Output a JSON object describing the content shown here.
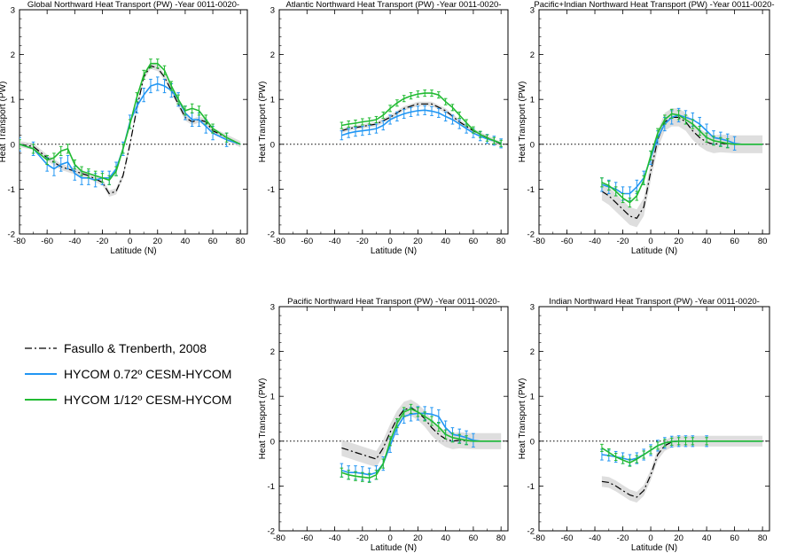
{
  "legend": {
    "items": [
      {
        "label": "Fasullo & Trenberth, 2008",
        "color": "#000000",
        "style": "dashdot"
      },
      {
        "label": "HYCOM 0.72º CESM-HYCOM",
        "color": "#2196f3",
        "style": "solid"
      },
      {
        "label": "HYCOM 1/12º CESM-HYCOM",
        "color": "#22bb33",
        "style": "solid"
      }
    ]
  },
  "chart_data": [
    {
      "type": "line",
      "title": "Global Northward Heat Transport (PW) -Year 0011-0020-",
      "xlabel": "Latitude (N)",
      "ylabel": "Heat Transport (PW)",
      "xlim": [
        -80,
        85
      ],
      "ylim": [
        -2,
        3
      ],
      "xticks": [
        -80,
        -60,
        -40,
        -20,
        0,
        20,
        40,
        60,
        80
      ],
      "yticks": [
        -2,
        -1,
        0,
        1,
        2,
        3
      ],
      "series": [
        {
          "name": "Fasullo & Trenberth, 2008",
          "x": [
            -80,
            -70,
            -60,
            -50,
            -40,
            -30,
            -20,
            -15,
            -10,
            -5,
            0,
            5,
            10,
            15,
            20,
            25,
            30,
            35,
            40,
            45,
            50,
            55,
            60,
            70,
            80
          ],
          "y": [
            0,
            -0.05,
            -0.3,
            -0.5,
            -0.6,
            -0.7,
            -0.85,
            -1.1,
            -1.05,
            -0.7,
            0,
            0.8,
            1.5,
            1.75,
            1.7,
            1.5,
            1.2,
            0.9,
            0.6,
            0.5,
            0.55,
            0.5,
            0.3,
            0.15,
            0
          ],
          "band": 0.07
        },
        {
          "name": "HYCOM 0.72º CESM-HYCOM",
          "x": [
            -80,
            -70,
            -60,
            -55,
            -50,
            -45,
            -40,
            -35,
            -30,
            -25,
            -20,
            -15,
            -10,
            -5,
            0,
            5,
            10,
            15,
            20,
            25,
            30,
            35,
            40,
            45,
            50,
            55,
            60,
            70,
            80
          ],
          "y": [
            0,
            -0.1,
            -0.45,
            -0.55,
            -0.45,
            -0.4,
            -0.65,
            -0.75,
            -0.75,
            -0.8,
            -0.75,
            -0.75,
            -0.55,
            -0.1,
            0.5,
            0.85,
            1.1,
            1.3,
            1.35,
            1.3,
            1.2,
            1.0,
            0.7,
            0.55,
            0.55,
            0.4,
            0.25,
            0.1,
            0
          ],
          "err": 0.15
        },
        {
          "name": "HYCOM 1/12º CESM-HYCOM",
          "x": [
            -80,
            -70,
            -60,
            -55,
            -50,
            -45,
            -40,
            -35,
            -30,
            -25,
            -20,
            -15,
            -10,
            -5,
            0,
            5,
            10,
            15,
            20,
            25,
            30,
            35,
            40,
            45,
            50,
            55,
            60,
            70,
            80
          ],
          "y": [
            0,
            -0.1,
            -0.35,
            -0.3,
            -0.15,
            -0.1,
            -0.45,
            -0.6,
            -0.65,
            -0.7,
            -0.75,
            -0.8,
            -0.6,
            -0.1,
            0.45,
            1.05,
            1.55,
            1.8,
            1.8,
            1.65,
            1.3,
            1.0,
            0.75,
            0.8,
            0.75,
            0.55,
            0.35,
            0.15,
            0
          ],
          "err": 0.1
        }
      ]
    },
    {
      "type": "line",
      "title": "Atlantic Northward Heat Transport (PW) -Year 0011-0020-",
      "xlabel": "Latitude (N)",
      "ylabel": "Heat Transport (PW)",
      "xlim": [
        -80,
        85
      ],
      "ylim": [
        -2,
        3
      ],
      "xticks": [
        -80,
        -60,
        -40,
        -20,
        0,
        20,
        40,
        60,
        80
      ],
      "yticks": [
        -2,
        -1,
        0,
        1,
        2,
        3
      ],
      "series": [
        {
          "name": "Fasullo & Trenberth, 2008",
          "x": [
            -35,
            -30,
            -20,
            -10,
            0,
            10,
            20,
            30,
            40,
            50,
            60,
            70,
            80
          ],
          "y": [
            0.3,
            0.35,
            0.4,
            0.45,
            0.6,
            0.8,
            0.9,
            0.9,
            0.75,
            0.5,
            0.3,
            0.15,
            0
          ],
          "band": 0.05
        },
        {
          "name": "HYCOM 0.72º CESM-HYCOM",
          "x": [
            -35,
            -30,
            -25,
            -20,
            -15,
            -10,
            -5,
            0,
            5,
            10,
            15,
            20,
            25,
            30,
            35,
            40,
            45,
            50,
            55,
            60,
            65,
            70,
            75,
            80
          ],
          "y": [
            0.2,
            0.25,
            0.28,
            0.3,
            0.32,
            0.35,
            0.42,
            0.55,
            0.62,
            0.68,
            0.72,
            0.75,
            0.76,
            0.74,
            0.7,
            0.62,
            0.55,
            0.45,
            0.35,
            0.25,
            0.18,
            0.12,
            0.08,
            0.02
          ],
          "err": 0.1
        },
        {
          "name": "HYCOM 1/12º CESM-HYCOM",
          "x": [
            -35,
            -30,
            -25,
            -20,
            -15,
            -10,
            -5,
            0,
            5,
            10,
            15,
            20,
            25,
            30,
            35,
            40,
            45,
            50,
            55,
            60,
            65,
            70,
            75,
            80
          ],
          "y": [
            0.42,
            0.45,
            0.47,
            0.5,
            0.52,
            0.55,
            0.65,
            0.8,
            0.92,
            1.02,
            1.08,
            1.12,
            1.14,
            1.14,
            1.1,
            0.95,
            0.82,
            0.65,
            0.48,
            0.32,
            0.22,
            0.14,
            0.08,
            0.02
          ],
          "err": 0.07
        }
      ]
    },
    {
      "type": "line",
      "title": "Pacific+Indian Northward Heat Transport (PW) -Year 0011-0020-",
      "xlabel": "Latitude (N)",
      "ylabel": "Heat Transport (PW)",
      "xlim": [
        -80,
        85
      ],
      "ylim": [
        -2,
        3
      ],
      "xticks": [
        -80,
        -60,
        -40,
        -20,
        0,
        20,
        40,
        60,
        80
      ],
      "yticks": [
        -2,
        -1,
        0,
        1,
        2,
        3
      ],
      "series": [
        {
          "name": "Fasullo & Trenberth, 2008",
          "x": [
            -35,
            -30,
            -25,
            -20,
            -15,
            -10,
            -5,
            0,
            5,
            10,
            15,
            20,
            25,
            30,
            35,
            40,
            45,
            50,
            60,
            70,
            80
          ],
          "y": [
            -1.05,
            -1.15,
            -1.3,
            -1.45,
            -1.6,
            -1.65,
            -1.4,
            -0.6,
            0.1,
            0.5,
            0.6,
            0.6,
            0.5,
            0.3,
            0.15,
            0.05,
            0,
            0.02,
            0,
            0,
            0
          ],
          "band": 0.2
        },
        {
          "name": "HYCOM 0.72º CESM-HYCOM",
          "x": [
            -35,
            -30,
            -25,
            -20,
            -15,
            -10,
            -5,
            0,
            5,
            10,
            15,
            20,
            25,
            30,
            35,
            40,
            45,
            50,
            55,
            60,
            65,
            70,
            80
          ],
          "y": [
            -0.9,
            -0.95,
            -1.0,
            -1.1,
            -1.1,
            -0.95,
            -0.75,
            -0.3,
            0.15,
            0.45,
            0.6,
            0.65,
            0.6,
            0.55,
            0.45,
            0.3,
            0.15,
            0.12,
            0.08,
            0.02,
            0,
            0,
            0
          ],
          "err": 0.15
        },
        {
          "name": "HYCOM 1/12º CESM-HYCOM",
          "x": [
            -35,
            -30,
            -25,
            -20,
            -15,
            -10,
            -5,
            0,
            5,
            10,
            15,
            20,
            25,
            30,
            35,
            40,
            45,
            50,
            55,
            60,
            65,
            70,
            80
          ],
          "y": [
            -0.85,
            -0.92,
            -1.05,
            -1.2,
            -1.3,
            -1.15,
            -0.8,
            -0.25,
            0.25,
            0.55,
            0.68,
            0.65,
            0.55,
            0.45,
            0.3,
            0.15,
            0.08,
            0.05,
            0.02,
            0,
            0,
            0,
            0
          ],
          "err": 0.1
        }
      ]
    },
    {
      "type": "line",
      "title": "Pacific Northward Heat Transport (PW) -Year 0011-0020-",
      "xlabel": "Latitude (N)",
      "ylabel": "Heat Transport (PW)",
      "xlim": [
        -80,
        85
      ],
      "ylim": [
        -2,
        3
      ],
      "xticks": [
        -80,
        -60,
        -40,
        -20,
        0,
        20,
        40,
        60,
        80
      ],
      "yticks": [
        -2,
        -1,
        0,
        1,
        2,
        3
      ],
      "series": [
        {
          "name": "Fasullo & Trenberth, 2008",
          "x": [
            -35,
            -30,
            -25,
            -20,
            -15,
            -10,
            -5,
            0,
            5,
            10,
            15,
            20,
            25,
            30,
            35,
            40,
            45,
            50,
            60,
            70,
            80
          ],
          "y": [
            -0.15,
            -0.2,
            -0.25,
            -0.3,
            -0.35,
            -0.4,
            -0.15,
            0.2,
            0.5,
            0.7,
            0.75,
            0.65,
            0.5,
            0.3,
            0.15,
            0.05,
            0,
            0.02,
            0,
            0,
            0
          ],
          "band": 0.18
        },
        {
          "name": "HYCOM 0.72º CESM-HYCOM",
          "x": [
            -35,
            -30,
            -25,
            -20,
            -15,
            -10,
            -5,
            0,
            5,
            10,
            15,
            20,
            25,
            30,
            35,
            40,
            45,
            50,
            55,
            60,
            65,
            70,
            80
          ],
          "y": [
            -0.65,
            -0.7,
            -0.7,
            -0.72,
            -0.75,
            -0.7,
            -0.5,
            -0.1,
            0.3,
            0.55,
            0.6,
            0.62,
            0.62,
            0.6,
            0.55,
            0.3,
            0.15,
            0.12,
            0.08,
            0.02,
            0,
            0,
            0
          ],
          "err": 0.15
        },
        {
          "name": "HYCOM 1/12º CESM-HYCOM",
          "x": [
            -35,
            -30,
            -25,
            -20,
            -15,
            -10,
            -5,
            0,
            5,
            10,
            15,
            20,
            25,
            30,
            35,
            40,
            45,
            50,
            55,
            60,
            65,
            70,
            80
          ],
          "y": [
            -0.7,
            -0.75,
            -0.78,
            -0.8,
            -0.82,
            -0.75,
            -0.5,
            0,
            0.4,
            0.65,
            0.72,
            0.65,
            0.55,
            0.45,
            0.32,
            0.15,
            0.08,
            0.05,
            0.02,
            0,
            0,
            0,
            0
          ],
          "err": 0.1
        }
      ]
    },
    {
      "type": "line",
      "title": "Indian Northward Heat Transport (PW) -Year 0011-0020-",
      "xlabel": "Latitude (N)",
      "ylabel": "Heat Transport (PW)",
      "xlim": [
        -80,
        85
      ],
      "ylim": [
        -2,
        3
      ],
      "xticks": [
        -80,
        -60,
        -40,
        -20,
        0,
        20,
        40,
        60,
        80
      ],
      "yticks": [
        -2,
        -1,
        0,
        1,
        2,
        3
      ],
      "series": [
        {
          "name": "Fasullo & Trenberth, 2008",
          "x": [
            -35,
            -30,
            -25,
            -20,
            -15,
            -10,
            -5,
            0,
            5,
            10,
            15,
            20,
            25,
            30,
            40,
            50,
            60,
            70,
            80
          ],
          "y": [
            -0.9,
            -0.92,
            -1.0,
            -1.1,
            -1.2,
            -1.25,
            -1.1,
            -0.75,
            -0.3,
            -0.1,
            -0.02,
            0,
            0,
            0,
            0,
            0,
            0,
            0,
            0
          ],
          "band": 0.12
        },
        {
          "name": "HYCOM 0.72º CESM-HYCOM",
          "x": [
            -35,
            -30,
            -25,
            -20,
            -15,
            -10,
            -5,
            0,
            5,
            10,
            15,
            20,
            25,
            30,
            40,
            50,
            60,
            70,
            80
          ],
          "y": [
            -0.3,
            -0.32,
            -0.35,
            -0.38,
            -0.42,
            -0.38,
            -0.3,
            -0.2,
            -0.1,
            -0.04,
            -0.01,
            0,
            0,
            0,
            0,
            0,
            0,
            0,
            0
          ],
          "err": 0.12
        },
        {
          "name": "HYCOM 1/12º CESM-HYCOM",
          "x": [
            -35,
            -30,
            -25,
            -20,
            -15,
            -10,
            -5,
            0,
            5,
            10,
            15,
            20,
            25,
            30,
            40,
            50,
            60,
            70,
            80
          ],
          "y": [
            -0.15,
            -0.25,
            -0.35,
            -0.42,
            -0.48,
            -0.4,
            -0.3,
            -0.2,
            -0.1,
            -0.04,
            -0.01,
            0,
            0,
            0,
            0,
            0,
            0,
            0,
            0
          ],
          "err": 0.08
        }
      ]
    }
  ]
}
